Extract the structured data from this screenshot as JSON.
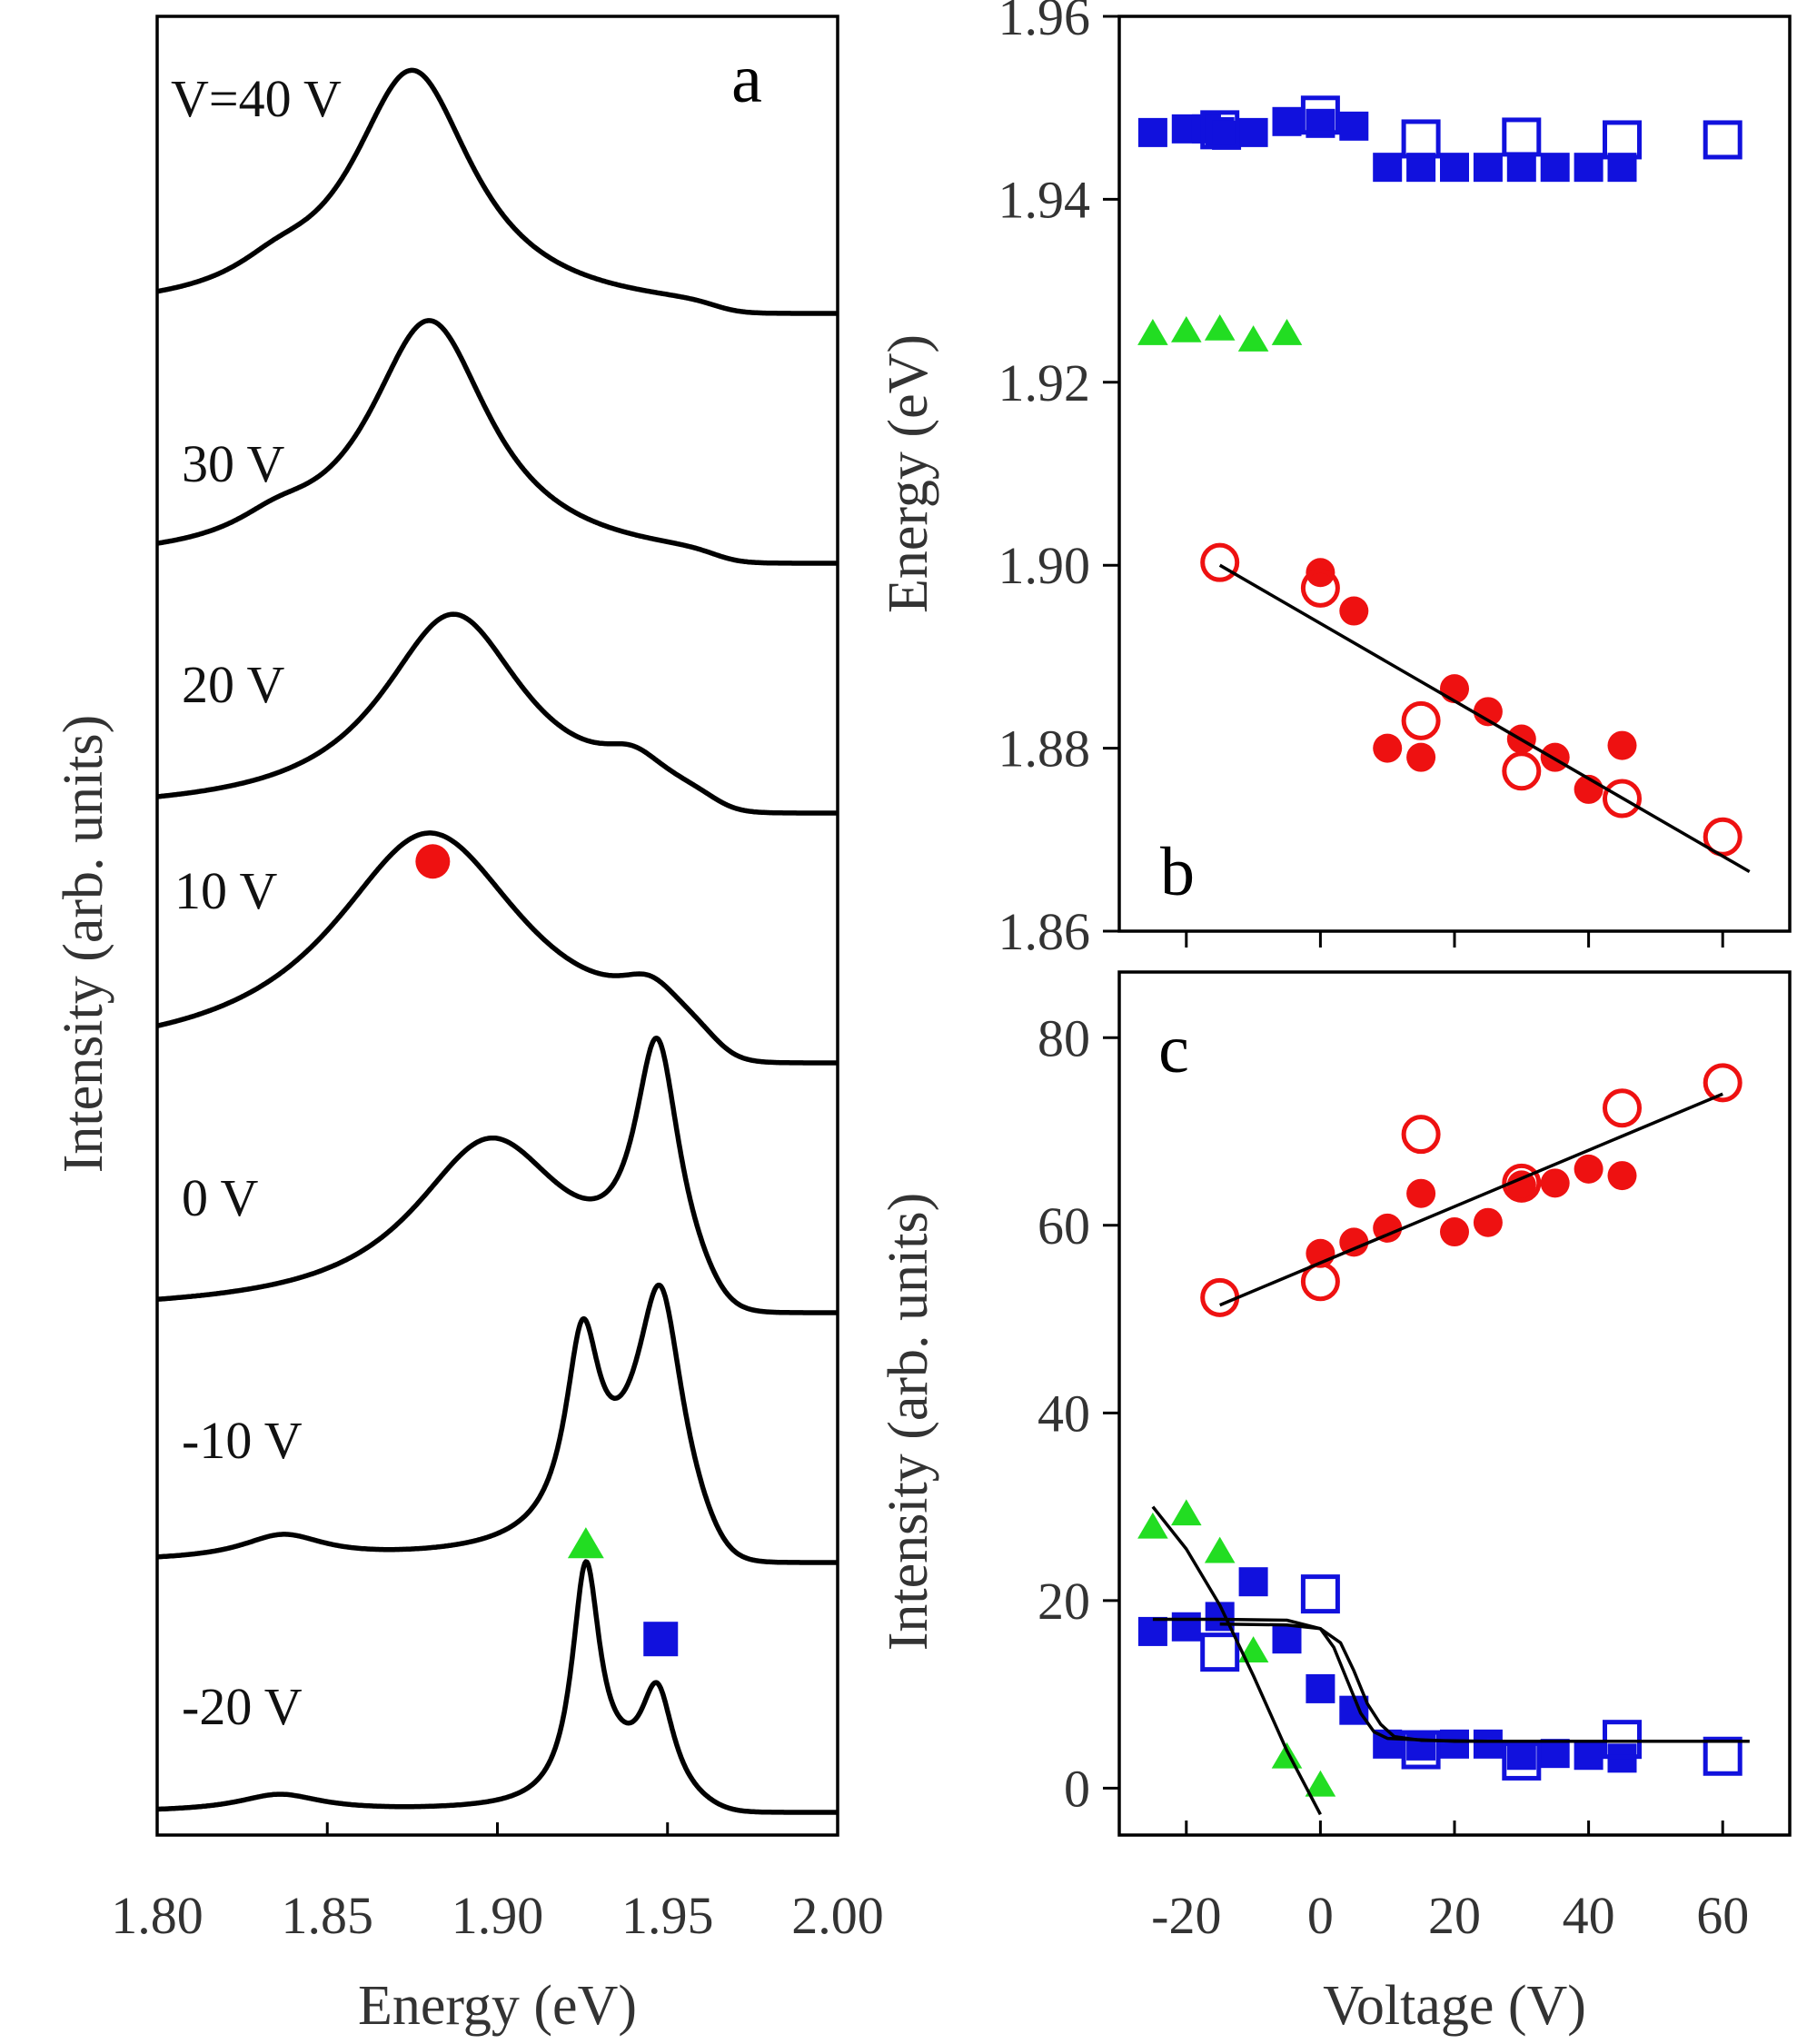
{
  "chart_data": [
    {
      "id": "a",
      "type": "line",
      "panel_label": "a",
      "xlabel": "Energy (eV)",
      "ylabel": "Intensity (arb. units)",
      "xlim": [
        1.8,
        2.0
      ],
      "xticks": [
        "1.80",
        "1.85",
        "1.90",
        "1.95",
        "2.00"
      ],
      "series": [
        {
          "name": "V=40 V",
          "label": "V=40 V",
          "offset": 6,
          "peaks": [
            {
              "center": 1.875,
              "amp": 1.0,
              "width": 0.022
            },
            {
              "center": 1.835,
              "amp": 0.08,
              "width": 0.015
            }
          ]
        },
        {
          "name": "30 V",
          "label": "30 V",
          "offset": 5,
          "peaks": [
            {
              "center": 1.88,
              "amp": 1.0,
              "width": 0.022
            },
            {
              "center": 1.835,
              "amp": 0.08,
              "width": 0.015
            }
          ]
        },
        {
          "name": "20 V",
          "label": "20 V",
          "offset": 4,
          "peaks": [
            {
              "center": 1.887,
              "amp": 0.82,
              "width": 0.026
            },
            {
              "center": 1.94,
              "amp": 0.12,
              "width": 0.012
            }
          ]
        },
        {
          "name": "10 V",
          "label": "10 V",
          "offset": 3,
          "peaks": [
            {
              "center": 1.88,
              "amp": 0.95,
              "width": 0.035
            },
            {
              "center": 1.945,
              "amp": 0.15,
              "width": 0.012
            }
          ]
        },
        {
          "name": "0 V",
          "label": "0 V",
          "offset": 2,
          "peaks": [
            {
              "center": 1.898,
              "amp": 0.7,
              "width": 0.028
            },
            {
              "center": 1.947,
              "amp": 0.98,
              "width": 0.008
            }
          ]
        },
        {
          "name": "-10 V",
          "label": "-10 V",
          "offset": 1,
          "peaks": [
            {
              "center": 1.925,
              "amp": 0.75,
              "width": 0.006
            },
            {
              "center": 1.948,
              "amp": 0.9,
              "width": 0.008
            },
            {
              "center": 1.94,
              "amp": 0.25,
              "width": 0.02
            },
            {
              "center": 1.837,
              "amp": 0.1,
              "width": 0.015
            }
          ]
        },
        {
          "name": "-20 V",
          "label": "-20 V",
          "offset": 0,
          "peaks": [
            {
              "center": 1.926,
              "amp": 0.95,
              "width": 0.005
            },
            {
              "center": 1.947,
              "amp": 0.45,
              "width": 0.006
            },
            {
              "center": 1.935,
              "amp": 0.1,
              "width": 0.01
            },
            {
              "center": 1.836,
              "amp": 0.07,
              "width": 0.015
            }
          ]
        }
      ],
      "markers": [
        {
          "shape": "circle",
          "color": "#ee1111",
          "x": 1.881,
          "trace_level": 3.95
        },
        {
          "shape": "triangle",
          "color": "#22dd22",
          "x": 1.926,
          "trace_level": 1.12
        },
        {
          "shape": "square",
          "color": "#1111dd",
          "x": 1.948,
          "trace_level": 0.72
        }
      ]
    },
    {
      "id": "b",
      "type": "scatter",
      "panel_label": "b",
      "xlabel": "",
      "ylabel": "Energy (eV)",
      "xlim": [
        -30,
        70
      ],
      "ylim": [
        1.86,
        1.96
      ],
      "xticks": [
        -20,
        0,
        20,
        40,
        60
      ],
      "yticks": [
        "1.86",
        "1.88",
        "1.90",
        "1.92",
        "1.94",
        "1.96"
      ],
      "series": [
        {
          "name": "blue filled squares",
          "marker": "square-filled",
          "color": "#1111dd",
          "x": [
            -25,
            -20,
            -17,
            -15,
            -14,
            -10,
            -5,
            0,
            5,
            10,
            15,
            20,
            25,
            30,
            35,
            40,
            45
          ],
          "y": [
            1.9473,
            1.9477,
            1.9477,
            1.9474,
            1.947,
            1.9473,
            1.9485,
            1.9483,
            1.948,
            1.9435,
            1.9435,
            1.9435,
            1.9435,
            1.9435,
            1.9435,
            1.9435,
            1.9435
          ]
        },
        {
          "name": "blue open squares",
          "marker": "square-open",
          "color": "#1111dd",
          "x": [
            -15,
            0,
            15,
            30,
            45,
            60
          ],
          "y": [
            1.9476,
            1.9492,
            1.9466,
            1.9468,
            1.9465,
            1.9465
          ]
        },
        {
          "name": "green triangles",
          "marker": "triangle",
          "color": "#22dd22",
          "x": [
            -25,
            -20,
            -15,
            -10,
            -5
          ],
          "y": [
            1.9255,
            1.9258,
            1.926,
            1.9248,
            1.9255
          ]
        },
        {
          "name": "red filled circles",
          "marker": "circle-filled",
          "color": "#ee1111",
          "x": [
            0,
            5,
            10,
            15,
            20,
            25,
            30,
            35,
            40,
            45
          ],
          "y": [
            1.8992,
            1.895,
            1.88,
            1.879,
            1.8865,
            1.884,
            1.881,
            1.879,
            1.8755,
            1.8803
          ]
        },
        {
          "name": "red open circles",
          "marker": "circle-open",
          "color": "#ee1111",
          "x": [
            -15,
            0,
            15,
            30,
            45,
            60
          ],
          "y": [
            1.9003,
            1.8975,
            1.883,
            1.8775,
            1.8745,
            1.8703
          ]
        },
        {
          "name": "linear fit",
          "marker": "line",
          "color": "#000000",
          "x": [
            -15,
            64
          ],
          "y": [
            1.9,
            1.8665
          ]
        }
      ]
    },
    {
      "id": "c",
      "type": "scatter",
      "panel_label": "c",
      "xlabel": "Voltage (V)",
      "ylabel": "Intensity (arb. units)",
      "xlim": [
        -30,
        70
      ],
      "ylim": [
        -5,
        87
      ],
      "xticks": [
        "-20",
        "0",
        "20",
        "40",
        "60"
      ],
      "yticks": [
        "0",
        "20",
        "40",
        "60",
        "80"
      ],
      "series": [
        {
          "name": "red filled circles",
          "marker": "circle-filled",
          "color": "#ee1111",
          "x": [
            0,
            5,
            10,
            15,
            20,
            25,
            30,
            35,
            40,
            45
          ],
          "y": [
            57,
            58.2,
            59.7,
            63.4,
            59.3,
            60.3,
            64.3,
            64.5,
            66.0,
            65.3
          ]
        },
        {
          "name": "red open circles",
          "marker": "circle-open",
          "color": "#ee1111",
          "x": [
            -15,
            0,
            15,
            30,
            45,
            60
          ],
          "y": [
            52.3,
            54.0,
            69.7,
            64.5,
            72.5,
            75.2
          ]
        },
        {
          "name": "green triangles",
          "marker": "triangle",
          "color": "#22dd22",
          "x": [
            -25,
            -20,
            -15,
            -10,
            -5,
            0
          ],
          "y": [
            28.0,
            29.4,
            25.4,
            14.8,
            3.5,
            0.5
          ]
        },
        {
          "name": "blue filled squares",
          "marker": "square-filled",
          "color": "#1111dd",
          "x": [
            -25,
            -20,
            -15,
            -10,
            -5,
            0,
            5,
            10,
            15,
            20,
            25,
            30,
            35,
            40,
            45
          ],
          "y": [
            16.7,
            17.2,
            18.3,
            22.0,
            15.9,
            10.6,
            8.3,
            4.7,
            4.5,
            4.7,
            4.7,
            3.5,
            3.7,
            3.5,
            3.2
          ]
        },
        {
          "name": "blue open squares",
          "marker": "square-open",
          "color": "#1111dd",
          "x": [
            -15,
            0,
            15,
            30,
            45,
            60
          ],
          "y": [
            14.5,
            20.7,
            4.1,
            2.9,
            5.2,
            3.4
          ]
        },
        {
          "name": "red linear fit",
          "marker": "line",
          "color": "#000000",
          "x": [
            -15,
            60
          ],
          "y": [
            51.5,
            74.0
          ]
        },
        {
          "name": "green decay fit",
          "marker": "line",
          "color": "#000000",
          "x": [
            -25,
            -20,
            -15,
            -10,
            -5,
            0
          ],
          "y": [
            30.0,
            25.5,
            19.5,
            12.0,
            4.0,
            -2.8
          ]
        },
        {
          "name": "sigmoid fit 1",
          "marker": "line",
          "color": "#000000",
          "x": [
            -25,
            -15,
            -5,
            0,
            2,
            4,
            6,
            8,
            10,
            20,
            64
          ],
          "y": [
            18.0,
            18.0,
            17.9,
            17.0,
            15.0,
            11.5,
            8.0,
            6.0,
            5.3,
            5.0,
            5.0
          ]
        },
        {
          "name": "sigmoid fit 2",
          "marker": "line",
          "color": "#000000",
          "x": [
            -15,
            -5,
            0,
            3,
            5,
            7,
            9,
            11,
            15,
            25,
            64
          ],
          "y": [
            17.5,
            17.4,
            17.0,
            15.5,
            12.5,
            9.0,
            6.8,
            5.5,
            5.1,
            5.0,
            5.0
          ]
        }
      ]
    }
  ]
}
